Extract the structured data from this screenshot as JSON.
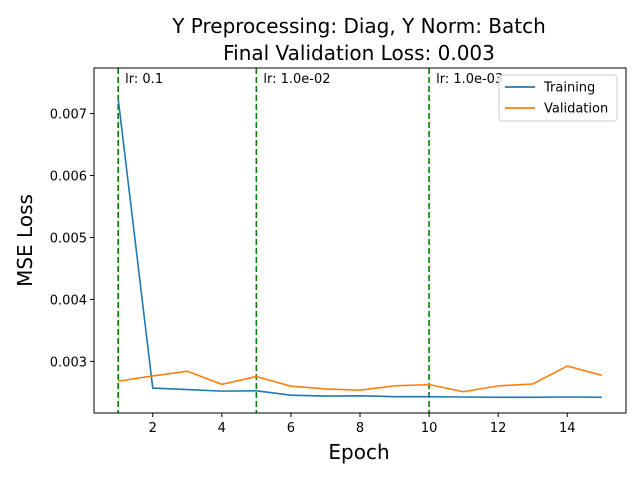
{
  "chart_data": {
    "type": "line",
    "title_line1": "Y Preprocessing: Diag, Y Norm: Batch",
    "title_line2": "Final Validation Loss: 0.003",
    "xlabel": "Epoch",
    "ylabel": "MSE Loss",
    "x": [
      1,
      2,
      3,
      4,
      5,
      6,
      7,
      8,
      9,
      10,
      11,
      12,
      13,
      14,
      15
    ],
    "xlim": [
      0.3,
      15.7
    ],
    "ylim": [
      0.002167,
      0.007735
    ],
    "xticks": [
      2,
      4,
      6,
      8,
      10,
      12,
      14
    ],
    "yticks": [
      0.003,
      0.004,
      0.005,
      0.006,
      0.007
    ],
    "ytick_labels": [
      "0.003",
      "0.004",
      "0.005",
      "0.006",
      "0.007"
    ],
    "grid": false,
    "legend_position": "top-right",
    "series": [
      {
        "name": "Training",
        "color": "#1f77b4",
        "values": [
          0.00724,
          0.00257,
          0.002545,
          0.00252,
          0.002525,
          0.002455,
          0.00244,
          0.002445,
          0.00243,
          0.00243,
          0.002425,
          0.00242,
          0.00242,
          0.002425,
          0.00242
        ]
      },
      {
        "name": "Validation",
        "color": "#ff7f0e",
        "values": [
          0.00268,
          0.002765,
          0.00284,
          0.00263,
          0.002755,
          0.0026,
          0.002555,
          0.002535,
          0.002605,
          0.002625,
          0.00251,
          0.002605,
          0.002635,
          0.002925,
          0.002775
        ]
      }
    ],
    "lr_markers": [
      {
        "epoch": 1,
        "label": "lr: 0.1",
        "color": "#008000"
      },
      {
        "epoch": 5,
        "label": "lr: 1.0e-02",
        "color": "#008000"
      },
      {
        "epoch": 10,
        "label": "lr: 1.0e-03",
        "color": "#008000"
      }
    ]
  }
}
